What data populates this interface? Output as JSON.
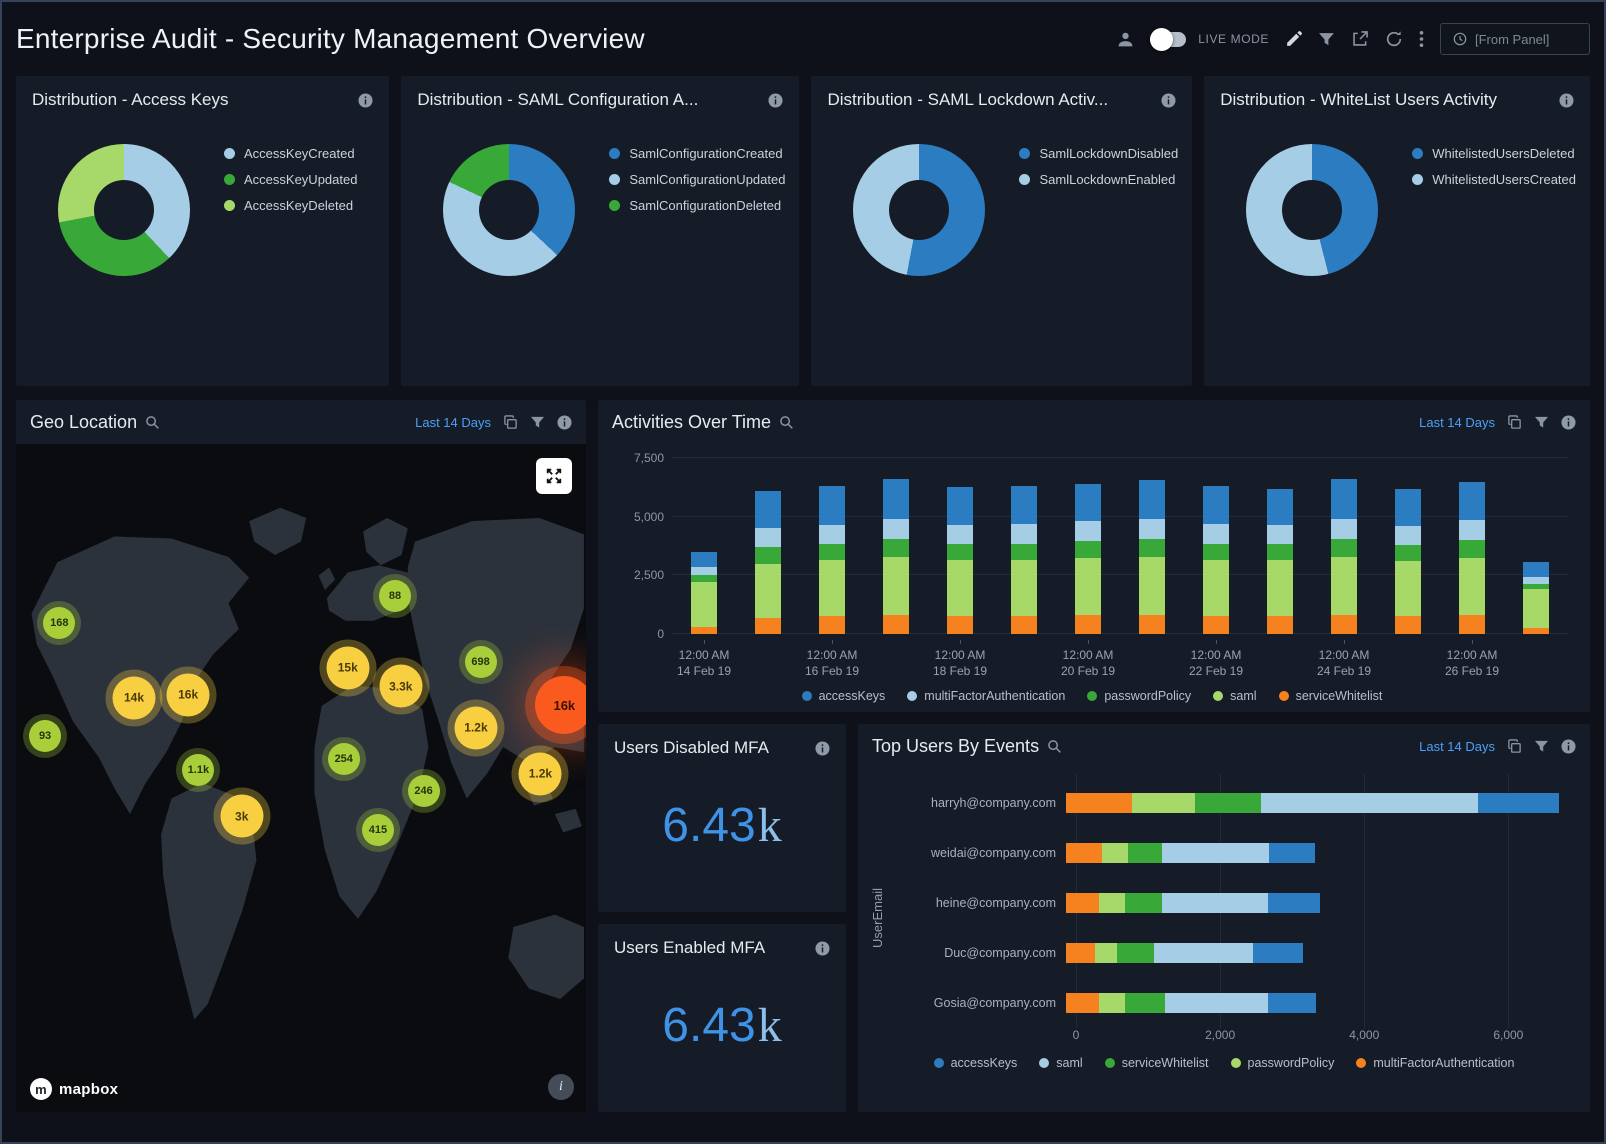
{
  "header": {
    "title": "Enterprise Audit - Security Management Overview",
    "live_mode_label": "LIVE MODE",
    "from_panel_label": "[From Panel]"
  },
  "palette": {
    "blue": "#2c7cc2",
    "lightBlue": "#a5cde6",
    "green": "#38a838",
    "lightGreen": "#a6d96a",
    "orange": "#f5821f"
  },
  "icons": [
    "user-icon",
    "live-mode-toggle",
    "edit-icon",
    "filter-icon",
    "share-icon",
    "refresh-icon",
    "more-menu-icon",
    "clock-icon",
    "info-icon",
    "magnifier-icon",
    "copy-icon",
    "fullscreen-icon",
    "map-info-icon",
    "mapbox-logo"
  ],
  "donuts": [
    {
      "title": "Distribution - Access Keys",
      "segments": [
        {
          "label": "AccessKeyCreated",
          "color": "lightBlue",
          "value": 38
        },
        {
          "label": "AccessKeyUpdated",
          "color": "green",
          "value": 34
        },
        {
          "label": "AccessKeyDeleted",
          "color": "lightGreen",
          "value": 28
        }
      ]
    },
    {
      "title": "Distribution - SAML Configuration A...",
      "segments": [
        {
          "label": "SamlConfigurationCreated",
          "color": "blue",
          "value": 37
        },
        {
          "label": "SamlConfigurationUpdated",
          "color": "lightBlue",
          "value": 45
        },
        {
          "label": "SamlConfigurationDeleted",
          "color": "green",
          "value": 18
        }
      ]
    },
    {
      "title": "Distribution - SAML Lockdown Activ...",
      "segments": [
        {
          "label": "SamlLockdownDisabled",
          "color": "blue",
          "value": 53
        },
        {
          "label": "SamlLockdownEnabled",
          "color": "lightBlue",
          "value": 47
        }
      ]
    },
    {
      "title": "Distribution - WhiteList Users Activity",
      "segments": [
        {
          "label": "WhitelistedUsersDeleted",
          "color": "blue",
          "value": 46
        },
        {
          "label": "WhitelistedUsersCreated",
          "color": "lightBlue",
          "value": 54
        }
      ]
    }
  ],
  "geo": {
    "title": "Geo Location",
    "range_label": "Last 14 Days",
    "mapbox_label": "mapbox",
    "markers": [
      {
        "label": "168",
        "x": 7.6,
        "y": 26.8,
        "color": "green",
        "size": "sm"
      },
      {
        "label": "88",
        "x": 66.5,
        "y": 22.8,
        "color": "green",
        "size": "sm"
      },
      {
        "label": "15k",
        "x": 58.2,
        "y": 33.5,
        "color": "yellow",
        "size": "md"
      },
      {
        "label": "3.3k",
        "x": 67.5,
        "y": 36.3,
        "color": "yellow",
        "size": "md"
      },
      {
        "label": "698",
        "x": 81.5,
        "y": 32.6,
        "color": "green",
        "size": "sm"
      },
      {
        "label": "14k",
        "x": 20.7,
        "y": 38.0,
        "color": "yellow",
        "size": "md"
      },
      {
        "label": "16k",
        "x": 30.2,
        "y": 37.5,
        "color": "yellow",
        "size": "md"
      },
      {
        "label": "16k",
        "x": 96.2,
        "y": 39.1,
        "color": "red",
        "size": "lg"
      },
      {
        "label": "1.2k",
        "x": 80.7,
        "y": 42.5,
        "color": "yellow",
        "size": "md"
      },
      {
        "label": "93",
        "x": 5.1,
        "y": 43.7,
        "color": "green",
        "size": "sm"
      },
      {
        "label": "1.1k",
        "x": 32.0,
        "y": 48.8,
        "color": "green",
        "size": "sm"
      },
      {
        "label": "254",
        "x": 57.5,
        "y": 47.1,
        "color": "green",
        "size": "sm"
      },
      {
        "label": "3k",
        "x": 39.6,
        "y": 55.7,
        "color": "yellow",
        "size": "md"
      },
      {
        "label": "246",
        "x": 71.5,
        "y": 52.0,
        "color": "green",
        "size": "sm"
      },
      {
        "label": "415",
        "x": 63.5,
        "y": 57.8,
        "color": "green",
        "size": "sm"
      },
      {
        "label": "1.2k",
        "x": 92.0,
        "y": 49.4,
        "color": "yellow",
        "size": "md"
      }
    ]
  },
  "activities": {
    "title": "Activities Over Time",
    "range_label": "Last 14 Days",
    "type": "stacked-bar",
    "ymax": 7500,
    "y_ticks": [
      {
        "v": 0,
        "label": "0"
      },
      {
        "v": 2500,
        "label": "2,500"
      },
      {
        "v": 5000,
        "label": "5,000"
      },
      {
        "v": 7500,
        "label": "7,500"
      }
    ],
    "stack_series": [
      "serviceWhitelist",
      "saml",
      "passwordPolicy",
      "multiFactorAuthentication",
      "accessKeys"
    ],
    "series_colors": {
      "accessKeys": "blue",
      "multiFactorAuthentication": "lightBlue",
      "passwordPolicy": "green",
      "saml": "lightGreen",
      "serviceWhitelist": "orange"
    },
    "legend": [
      {
        "name": "accessKeys",
        "color": "blue"
      },
      {
        "name": "multiFactorAuthentication",
        "color": "lightBlue"
      },
      {
        "name": "passwordPolicy",
        "color": "green"
      },
      {
        "name": "saml",
        "color": "lightGreen"
      },
      {
        "name": "serviceWhitelist",
        "color": "orange"
      }
    ],
    "bars": [
      [
        300,
        1900,
        300,
        350,
        650
      ],
      [
        700,
        2300,
        700,
        800,
        1600
      ],
      [
        750,
        2400,
        700,
        800,
        1650
      ],
      [
        800,
        2500,
        750,
        850,
        1700
      ],
      [
        750,
        2400,
        700,
        800,
        1600
      ],
      [
        750,
        2400,
        700,
        850,
        1600
      ],
      [
        800,
        2450,
        700,
        850,
        1600
      ],
      [
        800,
        2500,
        750,
        850,
        1650
      ],
      [
        750,
        2400,
        700,
        850,
        1600
      ],
      [
        750,
        2400,
        700,
        800,
        1550
      ],
      [
        800,
        2500,
        750,
        850,
        1700
      ],
      [
        750,
        2350,
        700,
        800,
        1600
      ],
      [
        800,
        2450,
        750,
        850,
        1650
      ],
      [
        250,
        1650,
        250,
        300,
        600
      ]
    ],
    "x_labels": [
      {
        "l1": "12:00 AM",
        "l2": "14 Feb 19"
      },
      null,
      {
        "l1": "12:00 AM",
        "l2": "16 Feb 19"
      },
      null,
      {
        "l1": "12:00 AM",
        "l2": "18 Feb 19"
      },
      null,
      {
        "l1": "12:00 AM",
        "l2": "20 Feb 19"
      },
      null,
      {
        "l1": "12:00 AM",
        "l2": "22 Feb 19"
      },
      null,
      {
        "l1": "12:00 AM",
        "l2": "24 Feb 19"
      },
      null,
      {
        "l1": "12:00 AM",
        "l2": "26 Feb 19"
      },
      null
    ]
  },
  "mfa": [
    {
      "title": "Users Disabled MFA",
      "value": "6.43",
      "suffix": "k"
    },
    {
      "title": "Users Enabled MFA",
      "value": "6.43",
      "suffix": "k"
    }
  ],
  "top_users": {
    "title": "Top Users By Events",
    "range_label": "Last 14 Days",
    "type": "stacked-bar-horizontal",
    "y_axis_label": "UserEmail",
    "xmax": 6800,
    "x_ticks": [
      {
        "v": 0,
        "label": "0"
      },
      {
        "v": 2000,
        "label": "2,000"
      },
      {
        "v": 4000,
        "label": "4,000"
      },
      {
        "v": 6000,
        "label": "6,000"
      }
    ],
    "stack_series": [
      "multiFactorAuthentication",
      "passwordPolicy",
      "serviceWhitelist",
      "saml",
      "accessKeys"
    ],
    "series_colors": {
      "accessKeys": "blue",
      "saml": "lightBlue",
      "serviceWhitelist": "green",
      "passwordPolicy": "lightGreen",
      "multiFactorAuthentication": "orange"
    },
    "legend": [
      {
        "name": "accessKeys",
        "color": "blue"
      },
      {
        "name": "saml",
        "color": "lightBlue"
      },
      {
        "name": "serviceWhitelist",
        "color": "green"
      },
      {
        "name": "passwordPolicy",
        "color": "lightGreen"
      },
      {
        "name": "multiFactorAuthentication",
        "color": "orange"
      }
    ],
    "rows": [
      {
        "label": "harryh@company.com",
        "values": [
          900,
          850,
          900,
          2950,
          1100
        ]
      },
      {
        "label": "weidai@company.com",
        "values": [
          490,
          350,
          460,
          1460,
          625
        ]
      },
      {
        "label": "heine@company.com",
        "values": [
          450,
          350,
          500,
          1450,
          700
        ]
      },
      {
        "label": "Duc@company.com",
        "values": [
          400,
          300,
          500,
          1350,
          670
        ]
      },
      {
        "label": "Gosia@company.com",
        "values": [
          450,
          350,
          550,
          1400,
          650
        ]
      }
    ]
  }
}
